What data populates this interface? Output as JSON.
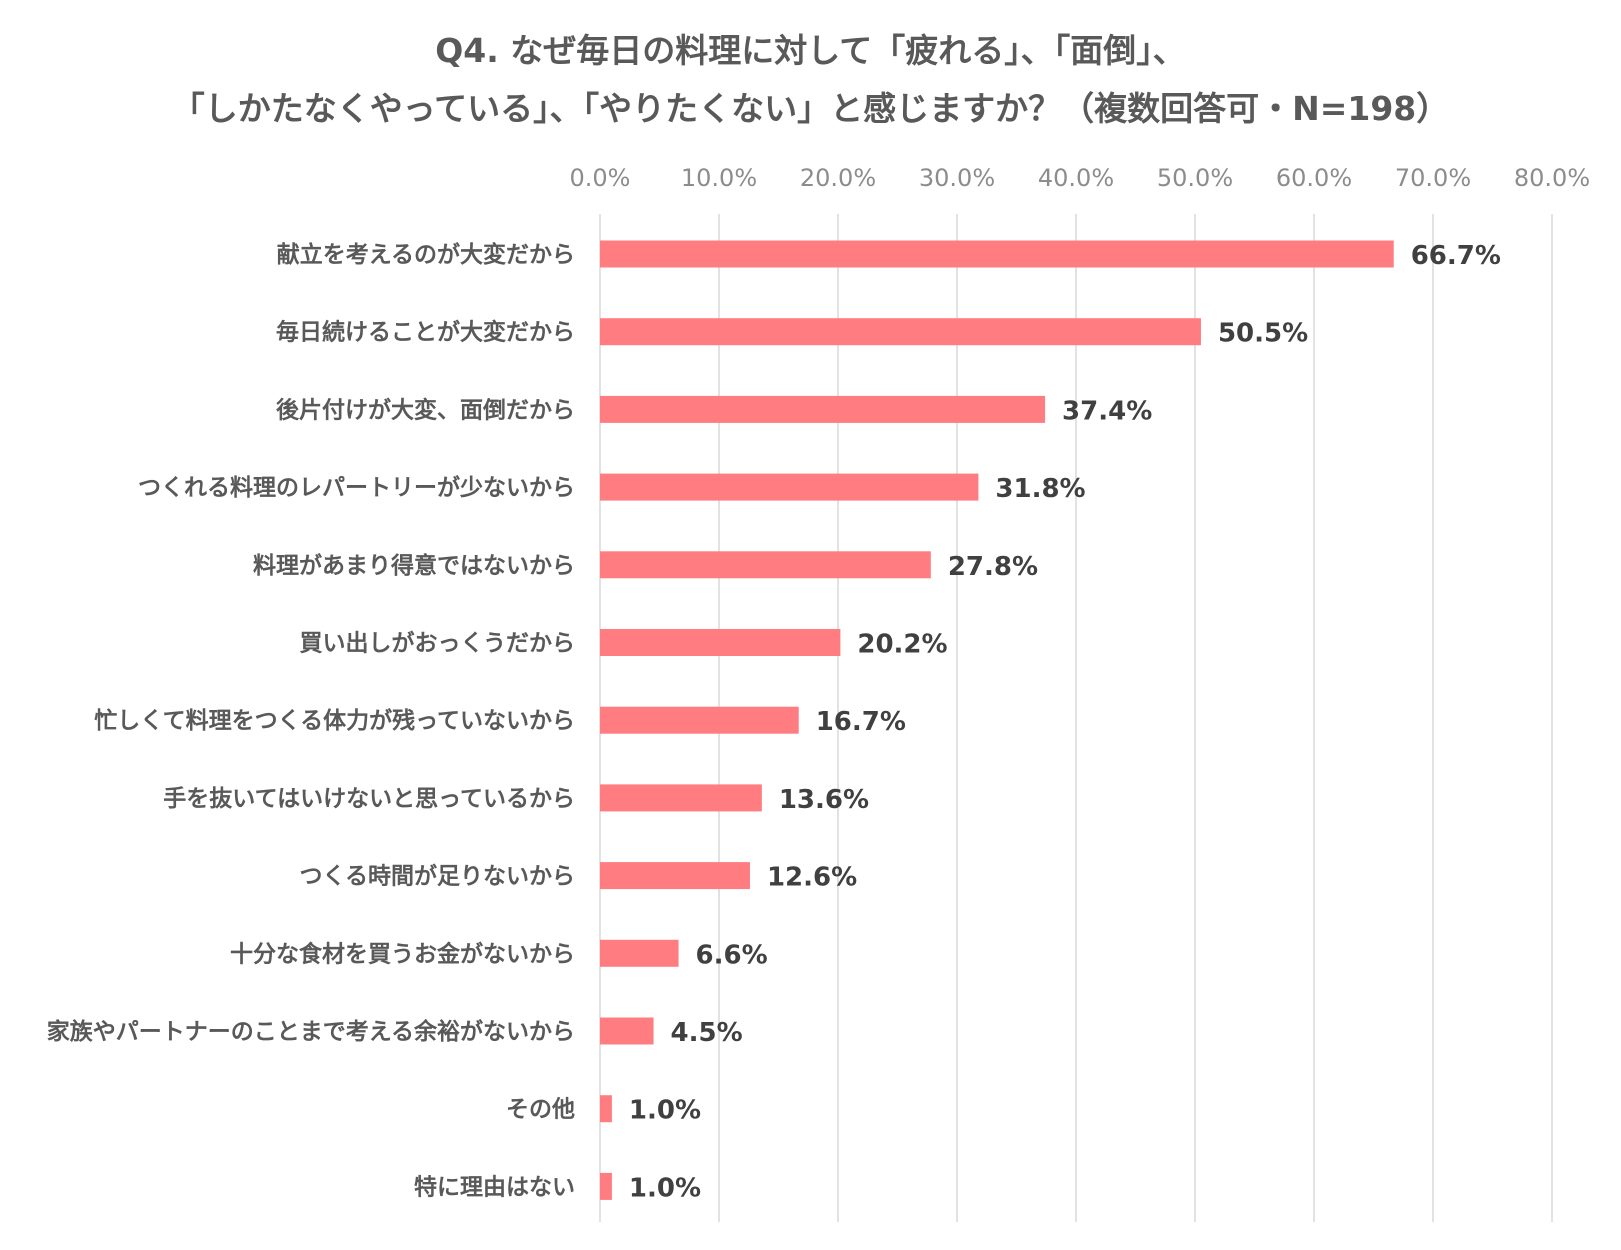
{
  "chart_data": {
    "type": "bar",
    "orientation": "horizontal",
    "title_lines": [
      "Q4. なぜ毎日の料理に対して「疲れる」、「面倒」、",
      "「しかたなくやっている」、「やりたくない」と感じますか？（複数回答可・N=198）"
    ],
    "categories": [
      "献立を考えるのが大変だから",
      "毎日続けることが大変だから",
      "後片付けが大変、面倒だから",
      "つくれる料理のレパートリーが少ないから",
      "料理があまり得意ではないから",
      "買い出しがおっくうだから",
      "忙しくて料理をつくる体力が残っていないから",
      "手を抜いてはいけないと思っているから",
      "つくる時間が足りないから",
      "十分な食材を買うお金がないから",
      "家族やパートナーのことまで考える余裕がないから",
      "その他",
      "特に理由はない"
    ],
    "values": [
      66.7,
      50.5,
      37.4,
      31.8,
      27.8,
      20.2,
      16.7,
      13.6,
      12.6,
      6.6,
      4.5,
      1.0,
      1.0
    ],
    "value_labels": [
      "66.7%",
      "50.5%",
      "37.4%",
      "31.8%",
      "27.8%",
      "20.2%",
      "16.7%",
      "13.6%",
      "12.6%",
      "6.6%",
      "4.5%",
      "1.0%",
      "1.0%"
    ],
    "xlim": [
      0,
      80
    ],
    "x_ticks": [
      "0.0%",
      "10.0%",
      "20.0%",
      "30.0%",
      "40.0%",
      "50.0%",
      "60.0%",
      "70.0%",
      "80.0%"
    ],
    "x_axis_position": "top",
    "grid": true,
    "legend": "none",
    "colors": {
      "bar": "#ff7c80",
      "grid": "#d9d9d9",
      "tick_text": "#8c8c8c",
      "label_text": "#595959",
      "value_text": "#404040",
      "title_text": "#595959"
    }
  }
}
